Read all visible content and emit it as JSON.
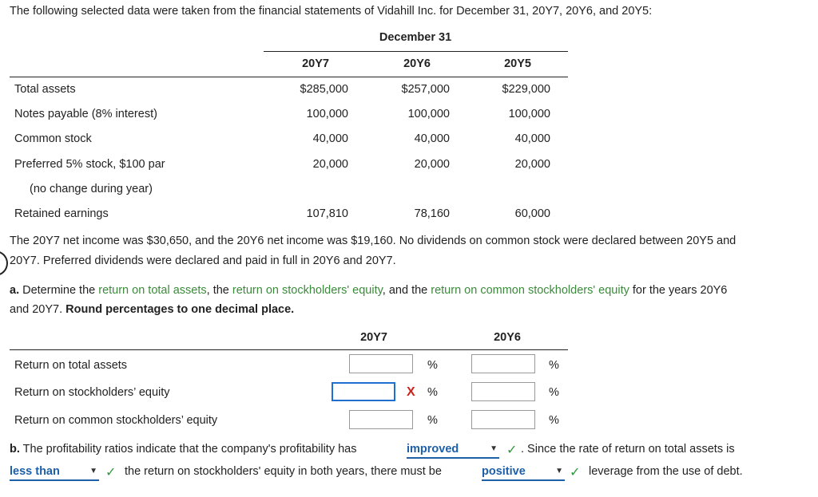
{
  "intro": "The following selected data were taken from the financial statements of Vidahill Inc. for December 31, 20Y7, 20Y6, and 20Y5:",
  "table1": {
    "group_header": "December 31",
    "columns": [
      "20Y7",
      "20Y6",
      "20Y5"
    ],
    "rows": [
      {
        "label": "Total assets",
        "values": [
          "$285,000",
          "$257,000",
          "$229,000"
        ]
      },
      {
        "label": "Notes payable (8% interest)",
        "values": [
          "100,000",
          "100,000",
          "100,000"
        ]
      },
      {
        "label": "Common stock",
        "values": [
          "40,000",
          "40,000",
          "40,000"
        ]
      },
      {
        "label": "Preferred 5% stock, $100 par",
        "values": [
          "20,000",
          "20,000",
          "20,000"
        ]
      },
      {
        "label": "(no change during year)"
      },
      {
        "label": "Retained earnings",
        "values": [
          "107,810",
          "78,160",
          "60,000"
        ]
      }
    ]
  },
  "para1_line1": "The 20Y7 net income was $30,650, and the 20Y6 net income was $19,160. No dividends on common stock were declared between 20Y5 and",
  "para1_line2": "20Y7. Preferred dividends were declared and paid in full in 20Y6 and 20Y7.",
  "part_a": {
    "prefix": "a.",
    "t1": " Determine the ",
    "link1": "return on total assets",
    "t2": ", the ",
    "link2": "return on stockholders' equity",
    "t3": ", and the ",
    "link3": "return on common stockholders' equity",
    "t4": " for the years 20Y6",
    "line2_plain": "and 20Y7. ",
    "line2_bold": "Round percentages to one decimal place."
  },
  "table2": {
    "columns": [
      "20Y7",
      "20Y6"
    ],
    "rows": [
      {
        "label": "Return on total assets",
        "val_20y7": "",
        "val_20y6": "",
        "unit": "%"
      },
      {
        "label": "Return on stockholders’ equity",
        "val_20y7": "",
        "val_20y6": "",
        "unit": "%",
        "mark_20y7": "X"
      },
      {
        "label": "Return on common stockholders’ equity",
        "val_20y7": "",
        "val_20y6": "",
        "unit": "%"
      }
    ]
  },
  "part_b": {
    "prefix": "b.",
    "t1": " The profitability ratios indicate that the company's profitability has ",
    "dd1": "improved",
    "t2": ". Since the rate of return on total assets is",
    "dd2": "less than",
    "t3": "the return on stockholders' equity in both years, there must be ",
    "dd3": "positive",
    "t4": "leverage from the use of debt.",
    "check": "✓"
  }
}
